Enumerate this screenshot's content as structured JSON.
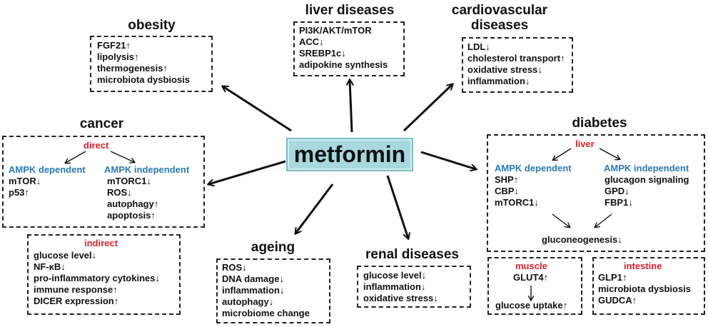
{
  "center": {
    "label": "metformin",
    "fill": "#a6d8dd"
  },
  "colors": {
    "category": "#e0202a",
    "pathway": "#2a7ab8",
    "text": "#111111"
  },
  "obesity": {
    "title": "obesity",
    "items": [
      "FGF21↑",
      "lipolysis↑",
      "thermogenesis↑",
      "microbiota dysbiosis"
    ]
  },
  "liver": {
    "title": "liver diseases",
    "items": [
      "PI3K/AKT/mTOR",
      "ACC↓",
      "SREBP1c↓",
      "adipokine synthesis"
    ]
  },
  "cardio": {
    "title_line1": "cardiovascular",
    "title_line2": "diseases",
    "items": [
      "LDL↓",
      "cholesterol transport↑",
      "oxidative stress↓",
      "inflammation↓"
    ]
  },
  "cancer": {
    "title": "cancer",
    "direct": {
      "label": "direct",
      "dependent": {
        "label": "AMPK dependent",
        "items": [
          "mTOR↓",
          "p53↑"
        ]
      },
      "independent": {
        "label": "AMPK independent",
        "items": [
          "mTORC1↓",
          "ROS↓",
          "autophagy↑",
          "apoptosis↑"
        ]
      }
    },
    "indirect": {
      "label": "indirect",
      "items": [
        "glucose level↓",
        "NF-κB↓",
        "pro-inflammatory cytokines↓",
        "immune response↑",
        "DICER expression↑"
      ]
    }
  },
  "diabetes": {
    "title": "diabetes",
    "liver": {
      "label": "liver",
      "dependent": {
        "label": "AMPK dependent",
        "items": [
          "SHP↑",
          "CBP↓",
          "mTORC1↓"
        ]
      },
      "independent": {
        "label": "AMPK independent",
        "items": [
          "glucagon signaling",
          "GPD↓",
          "FBP1↓"
        ]
      },
      "outcome": "gluconeogenesis↓"
    },
    "muscle": {
      "label": "muscle",
      "item": "GLUT4↑",
      "outcome": "glucose uptake↑"
    },
    "intestine": {
      "label": "intestine",
      "items": [
        "GLP1↑",
        "microbiota dysbiosis",
        "GUDCA↑"
      ]
    }
  },
  "ageing": {
    "title": "ageing",
    "items": [
      "ROS↓",
      "DNA damage↓",
      "inflammation↓",
      "autophagy↓",
      "microbiome change"
    ]
  },
  "renal": {
    "title": "renal diseases",
    "items": [
      "glucose level↓",
      "inflammation↓",
      "oxidative stress↓"
    ]
  }
}
